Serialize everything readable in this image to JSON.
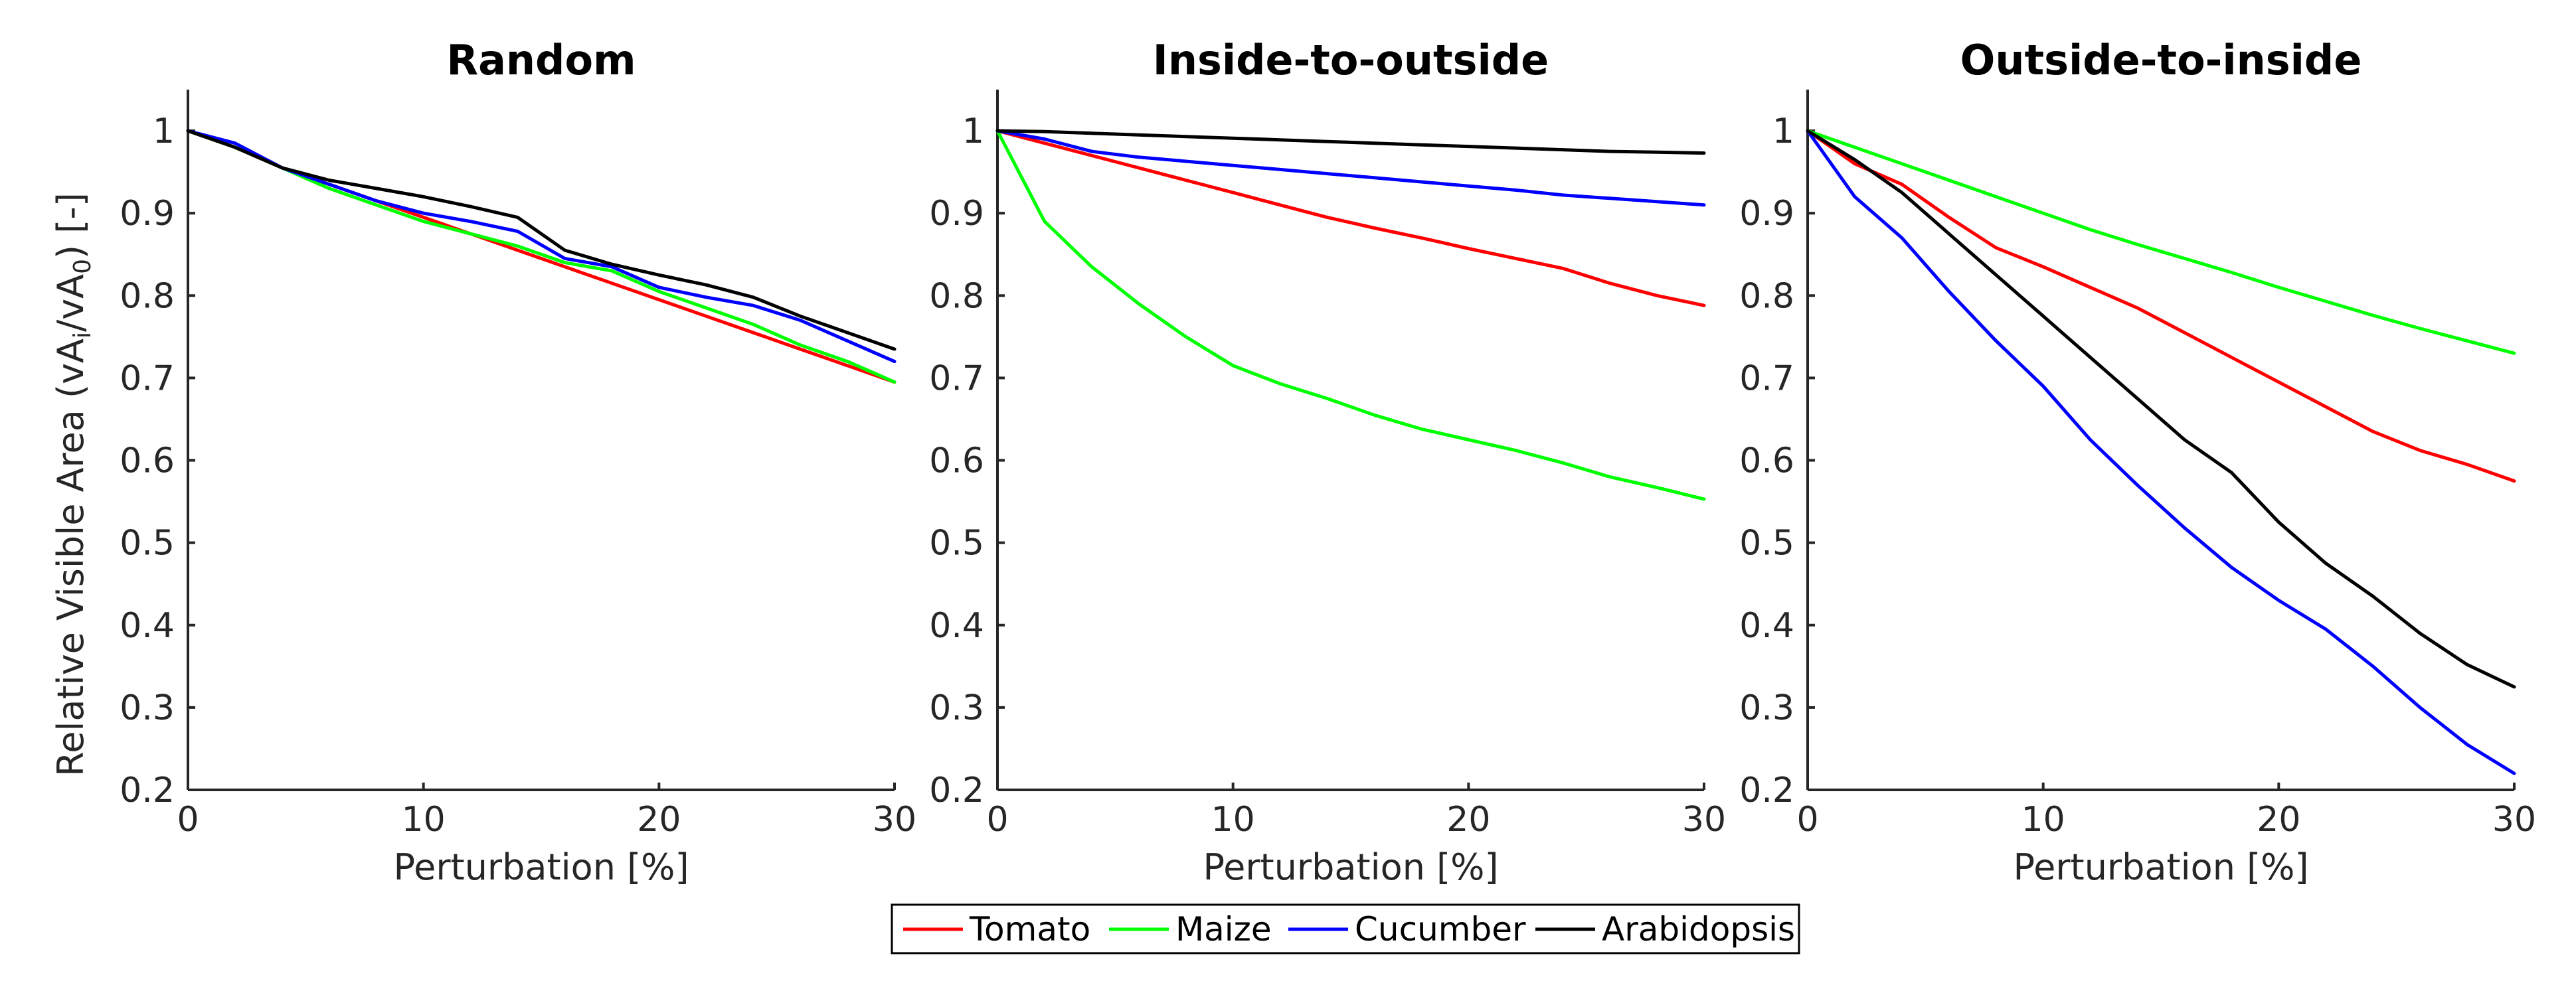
{
  "chart_data": {
    "type": "line",
    "shared": {
      "xlabel": "Perturbation [%]",
      "ylabel_parts": {
        "pre": "Relative Visible Area (vA",
        "sub1": "i",
        "mid": "/vA",
        "sub2": "0",
        "post": ") [-]"
      },
      "xlim": [
        0,
        30
      ],
      "ylim": [
        0.2,
        1.05
      ],
      "xticks": [
        0,
        10,
        20,
        30
      ],
      "yticks": [
        0.2,
        0.3,
        0.4,
        0.5,
        0.6,
        0.7,
        0.8,
        0.9,
        1
      ],
      "x": [
        0,
        2,
        4,
        6,
        8,
        10,
        12,
        14,
        16,
        18,
        20,
        22,
        24,
        26,
        28,
        30
      ]
    },
    "legend": [
      {
        "name": "Tomato",
        "color": "#ff0000"
      },
      {
        "name": "Maize",
        "color": "#00ff00"
      },
      {
        "name": "Cucumber",
        "color": "#0000ff"
      },
      {
        "name": "Arabidopsis",
        "color": "#000000"
      }
    ],
    "panels": [
      {
        "title": "Random",
        "series": [
          {
            "name": "Tomato",
            "color": "#ff0000",
            "values": [
              1.0,
              0.98,
              0.955,
              0.935,
              0.915,
              0.895,
              0.875,
              0.855,
              0.835,
              0.815,
              0.795,
              0.775,
              0.755,
              0.735,
              0.715,
              0.695
            ]
          },
          {
            "name": "Maize",
            "color": "#00ff00",
            "values": [
              1.0,
              0.98,
              0.955,
              0.93,
              0.91,
              0.89,
              0.875,
              0.86,
              0.84,
              0.83,
              0.805,
              0.785,
              0.765,
              0.74,
              0.72,
              0.695
            ]
          },
          {
            "name": "Cucumber",
            "color": "#0000ff",
            "values": [
              1.0,
              0.985,
              0.955,
              0.935,
              0.915,
              0.9,
              0.89,
              0.878,
              0.845,
              0.835,
              0.81,
              0.798,
              0.788,
              0.77,
              0.745,
              0.72
            ]
          },
          {
            "name": "Arabidopsis",
            "color": "#000000",
            "values": [
              1.0,
              0.98,
              0.955,
              0.94,
              0.93,
              0.92,
              0.908,
              0.895,
              0.855,
              0.838,
              0.825,
              0.813,
              0.798,
              0.775,
              0.755,
              0.735
            ]
          }
        ]
      },
      {
        "title": "Inside-to-outside",
        "series": [
          {
            "name": "Tomato",
            "color": "#ff0000",
            "values": [
              1.0,
              0.985,
              0.97,
              0.955,
              0.94,
              0.925,
              0.91,
              0.895,
              0.882,
              0.87,
              0.857,
              0.845,
              0.833,
              0.815,
              0.8,
              0.788
            ]
          },
          {
            "name": "Maize",
            "color": "#00ff00",
            "values": [
              1.0,
              0.89,
              0.835,
              0.79,
              0.75,
              0.715,
              0.693,
              0.675,
              0.655,
              0.638,
              0.625,
              0.612,
              0.597,
              0.58,
              0.567,
              0.553
            ]
          },
          {
            "name": "Cucumber",
            "color": "#0000ff",
            "values": [
              1.0,
              0.99,
              0.975,
              0.968,
              0.963,
              0.958,
              0.953,
              0.948,
              0.943,
              0.938,
              0.933,
              0.928,
              0.922,
              0.918,
              0.914,
              0.91
            ]
          },
          {
            "name": "Arabidopsis",
            "color": "#000000",
            "values": [
              1.0,
              0.999,
              0.997,
              0.995,
              0.993,
              0.991,
              0.989,
              0.987,
              0.985,
              0.983,
              0.981,
              0.979,
              0.977,
              0.975,
              0.974,
              0.973
            ]
          }
        ]
      },
      {
        "title": "Outside-to-inside",
        "series": [
          {
            "name": "Tomato",
            "color": "#ff0000",
            "values": [
              1.0,
              0.96,
              0.935,
              0.895,
              0.858,
              0.835,
              0.81,
              0.785,
              0.755,
              0.725,
              0.695,
              0.665,
              0.635,
              0.612,
              0.595,
              0.575
            ]
          },
          {
            "name": "Maize",
            "color": "#00ff00",
            "values": [
              1.0,
              0.98,
              0.96,
              0.94,
              0.92,
              0.9,
              0.88,
              0.862,
              0.845,
              0.828,
              0.81,
              0.793,
              0.776,
              0.76,
              0.745,
              0.73
            ]
          },
          {
            "name": "Cucumber",
            "color": "#0000ff",
            "values": [
              1.0,
              0.92,
              0.87,
              0.805,
              0.745,
              0.69,
              0.625,
              0.57,
              0.518,
              0.47,
              0.43,
              0.395,
              0.35,
              0.3,
              0.255,
              0.22
            ]
          },
          {
            "name": "Arabidopsis",
            "color": "#000000",
            "values": [
              1.0,
              0.965,
              0.925,
              0.875,
              0.825,
              0.775,
              0.725,
              0.675,
              0.625,
              0.585,
              0.525,
              0.475,
              0.435,
              0.39,
              0.352,
              0.325
            ]
          }
        ]
      }
    ]
  }
}
